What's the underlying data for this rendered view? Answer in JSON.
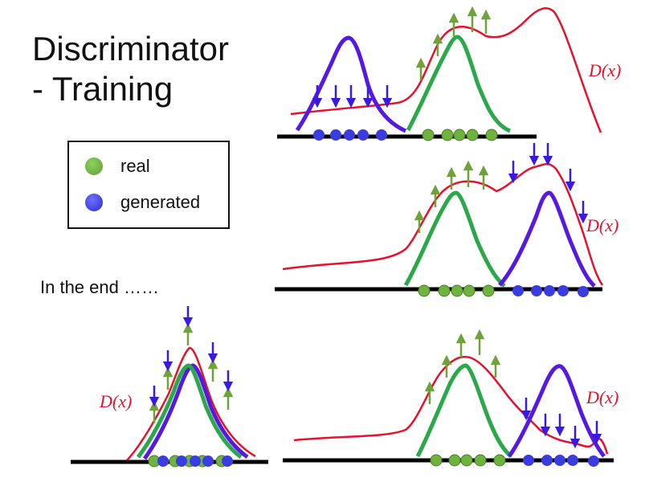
{
  "title": {
    "line1": "Discriminator",
    "line2": "- Training"
  },
  "legend": {
    "real_label": "real",
    "generated_label": "generated",
    "real_color": "#6fb33f",
    "generated_color": "#3b3ce0"
  },
  "end_text": "In the end ……",
  "d_label": "D(x)",
  "colors": {
    "real_curve": "#2ba84a",
    "generated_curve": "#5519e0",
    "d_curve": "#e8102a",
    "up_arrow": "#6fa33a",
    "down_arrow": "#3a1ae0",
    "axis": "#000000"
  }
}
